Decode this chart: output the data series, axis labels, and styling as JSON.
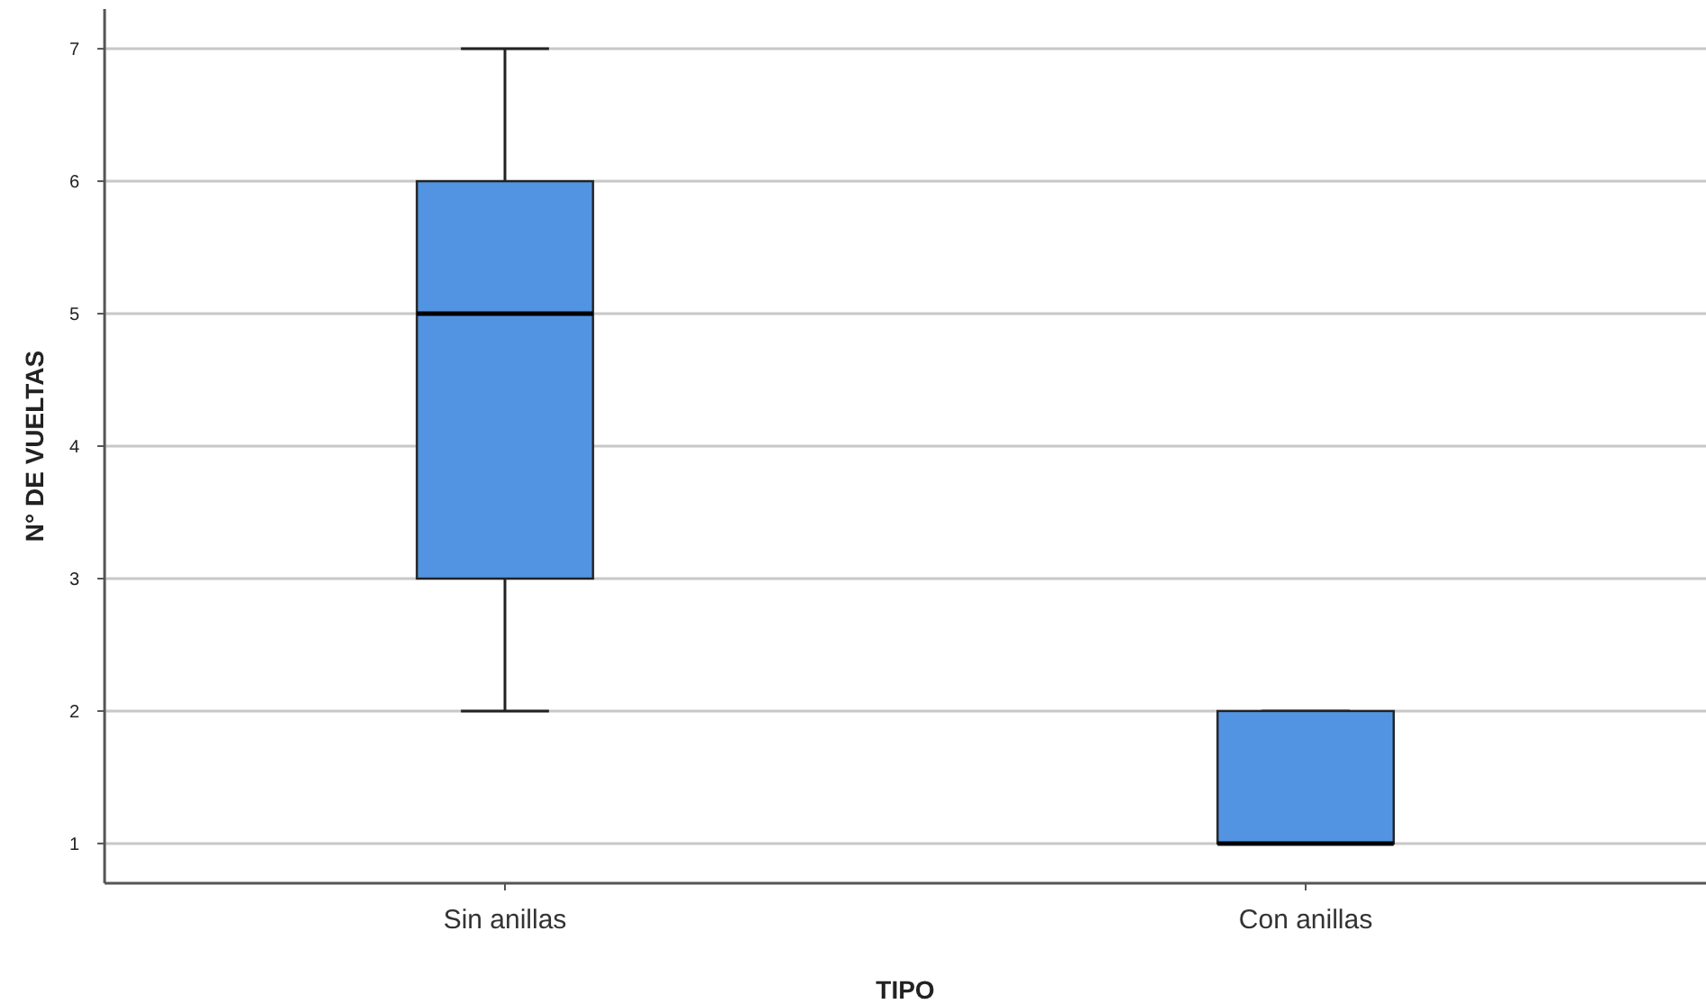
{
  "chart_data": {
    "type": "box",
    "xlabel": "TIPO",
    "ylabel": "N° DE VUELTAS",
    "categories": [
      "Sin anillas",
      "Con anillas"
    ],
    "color": "#5294e2",
    "boxes": [
      {
        "low": 2,
        "q1": 3,
        "median": 5,
        "q3": 6,
        "high": 7
      },
      {
        "low": 1,
        "q1": 1,
        "median": 1,
        "q3": 2,
        "high": 2
      }
    ],
    "ylim": [
      0.7,
      7.3
    ],
    "yticks": [
      1,
      2,
      3,
      4,
      5,
      6,
      7
    ],
    "grid": "y"
  }
}
